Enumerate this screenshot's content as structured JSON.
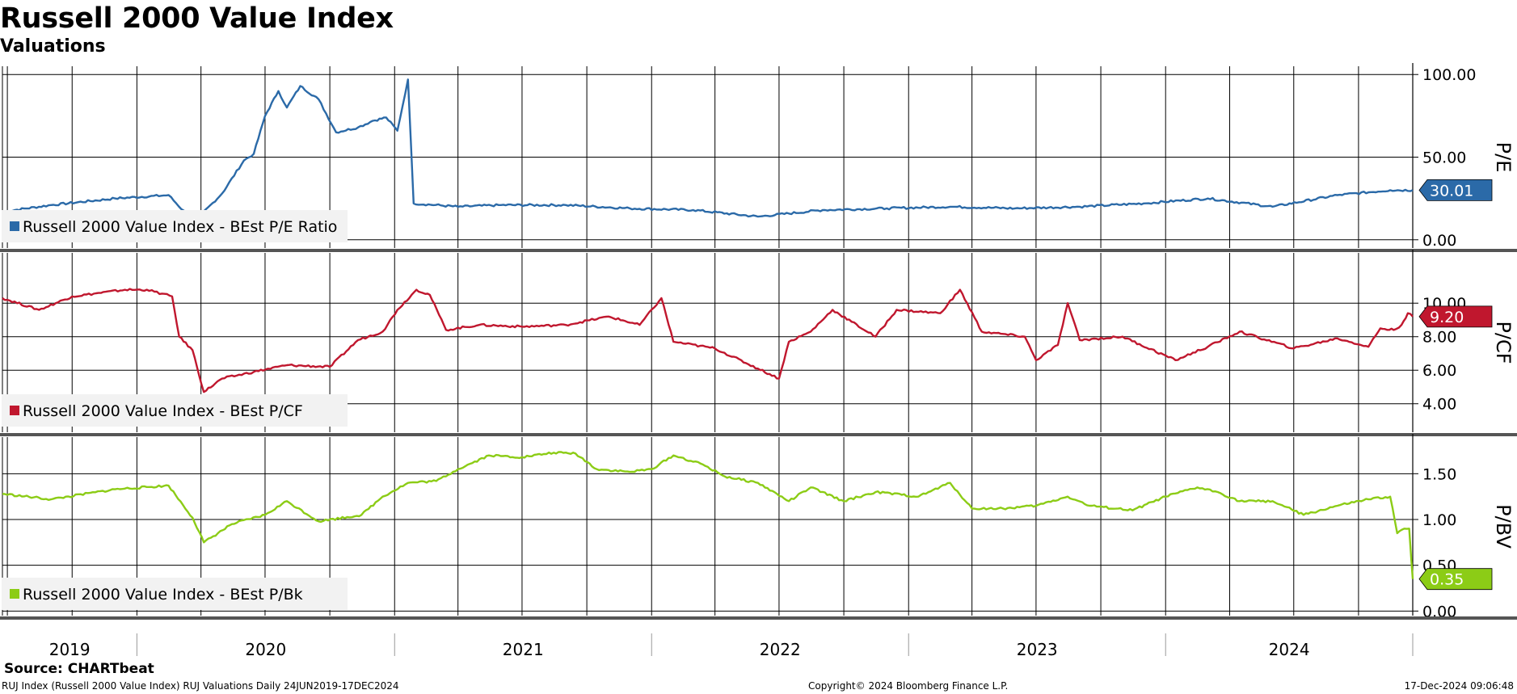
{
  "header": {
    "title": "Russell 2000 Value Index",
    "subtitle": "Valuations"
  },
  "footer": {
    "source": "Source: CHARTbeat",
    "left": "RUJ Index (Russell 2000 Value Index) RUJ Valuations  Daily 24JUN2019-17DEC2024",
    "middle": "Copyright© 2024 Bloomberg Finance L.P.",
    "right": "17-Dec-2024 09:06:48"
  },
  "colors": {
    "pe": "#2b6aa8",
    "pcf": "#c0172e",
    "pbv": "#8ccc16",
    "grid": "#000000"
  },
  "chart_data": {
    "type": "line",
    "x_start": "2019-06-24",
    "x_end": "2024-12-17",
    "x_tick_labels": [
      "2019",
      "2020",
      "2021",
      "2022",
      "2023",
      "2024"
    ],
    "panels": [
      {
        "ylabel": "P/E",
        "ylim": [
          -5,
          105
        ],
        "yticks": [
          0,
          50,
          100
        ],
        "ytick_labels": [
          "0.00",
          "50.00",
          "100.00"
        ],
        "last_value_label": "30.01",
        "series": [
          {
            "name": "Russell 2000 Value Index - BEst P/E Ratio",
            "color": "#2b6aa8",
            "points": [
              [
                "2019-06-24",
                17
              ],
              [
                "2019-09-01",
                21
              ],
              [
                "2019-12-01",
                25
              ],
              [
                "2020-02-15",
                27
              ],
              [
                "2020-03-15",
                14
              ],
              [
                "2020-04-01",
                15
              ],
              [
                "2020-05-01",
                28
              ],
              [
                "2020-06-01",
                48
              ],
              [
                "2020-06-15",
                52
              ],
              [
                "2020-07-01",
                75
              ],
              [
                "2020-07-20",
                90
              ],
              [
                "2020-08-01",
                80
              ],
              [
                "2020-08-20",
                93
              ],
              [
                "2020-09-15",
                85
              ],
              [
                "2020-10-10",
                65
              ],
              [
                "2020-11-10",
                68
              ],
              [
                "2020-12-01",
                72
              ],
              [
                "2020-12-20",
                74
              ],
              [
                "2021-01-05",
                66
              ],
              [
                "2021-01-20",
                97
              ],
              [
                "2021-01-28",
                22
              ],
              [
                "2021-04-01",
                20
              ],
              [
                "2021-06-01",
                21
              ],
              [
                "2021-09-01",
                21
              ],
              [
                "2021-12-01",
                19
              ],
              [
                "2022-03-01",
                18
              ],
              [
                "2022-06-01",
                14
              ],
              [
                "2022-09-01",
                18
              ],
              [
                "2022-12-01",
                19
              ],
              [
                "2023-03-01",
                20
              ],
              [
                "2023-06-01",
                19
              ],
              [
                "2023-09-01",
                20
              ],
              [
                "2023-12-01",
                22
              ],
              [
                "2024-03-01",
                25
              ],
              [
                "2024-06-01",
                20
              ],
              [
                "2024-09-01",
                27
              ],
              [
                "2024-11-15",
                30
              ],
              [
                "2024-12-17",
                30
              ]
            ]
          }
        ]
      },
      {
        "ylabel": "P/CF",
        "ylim": [
          2.3,
          13.0
        ],
        "yticks": [
          4,
          6,
          8,
          10
        ],
        "ytick_labels": [
          "4.00",
          "6.00",
          "8.00",
          "10.00"
        ],
        "last_value_label": "9.20",
        "series": [
          {
            "name": "Russell 2000 Value Index - BEst P/CF",
            "color": "#c0172e",
            "points": [
              [
                "2019-06-24",
                10.3
              ],
              [
                "2019-08-15",
                9.6
              ],
              [
                "2019-10-01",
                10.4
              ],
              [
                "2019-12-15",
                10.8
              ],
              [
                "2020-01-15",
                10.8
              ],
              [
                "2020-02-20",
                10.4
              ],
              [
                "2020-03-01",
                8.0
              ],
              [
                "2020-03-20",
                7.2
              ],
              [
                "2020-04-05",
                4.7
              ],
              [
                "2020-05-01",
                5.5
              ],
              [
                "2020-06-15",
                5.9
              ],
              [
                "2020-08-01",
                6.3
              ],
              [
                "2020-10-01",
                6.2
              ],
              [
                "2020-11-10",
                7.8
              ],
              [
                "2020-12-15",
                8.3
              ],
              [
                "2021-01-05",
                9.6
              ],
              [
                "2021-02-01",
                10.8
              ],
              [
                "2021-02-20",
                10.5
              ],
              [
                "2021-03-15",
                8.4
              ],
              [
                "2021-05-01",
                8.7
              ],
              [
                "2021-07-01",
                8.6
              ],
              [
                "2021-09-01",
                8.7
              ],
              [
                "2021-11-01",
                9.2
              ],
              [
                "2021-12-15",
                8.7
              ],
              [
                "2022-01-15",
                10.3
              ],
              [
                "2022-02-01",
                7.7
              ],
              [
                "2022-04-01",
                7.3
              ],
              [
                "2022-06-01",
                6.1
              ],
              [
                "2022-07-01",
                5.5
              ],
              [
                "2022-07-15",
                7.7
              ],
              [
                "2022-08-15",
                8.3
              ],
              [
                "2022-09-15",
                9.6
              ],
              [
                "2022-11-15",
                8.0
              ],
              [
                "2022-12-15",
                9.6
              ],
              [
                "2023-02-15",
                9.4
              ],
              [
                "2023-03-15",
                10.8
              ],
              [
                "2023-04-15",
                8.3
              ],
              [
                "2023-06-15",
                8.0
              ],
              [
                "2023-07-01",
                6.6
              ],
              [
                "2023-08-01",
                7.5
              ],
              [
                "2023-08-15",
                10.0
              ],
              [
                "2023-09-01",
                7.8
              ],
              [
                "2023-11-01",
                8.0
              ],
              [
                "2024-01-15",
                6.6
              ],
              [
                "2024-03-01",
                7.4
              ],
              [
                "2024-04-15",
                8.3
              ],
              [
                "2024-07-01",
                7.3
              ],
              [
                "2024-09-01",
                7.9
              ],
              [
                "2024-10-15",
                7.4
              ],
              [
                "2024-11-01",
                8.5
              ],
              [
                "2024-11-20",
                8.4
              ],
              [
                "2024-12-01",
                8.7
              ],
              [
                "2024-12-10",
                9.4
              ],
              [
                "2024-12-17",
                9.2
              ]
            ]
          }
        ]
      },
      {
        "ylabel": "P/BV",
        "ylim": [
          -0.05,
          1.9
        ],
        "yticks": [
          0,
          0.5,
          1,
          1.5
        ],
        "ytick_labels": [
          "0.00",
          "0.50",
          "1.00",
          "1.50"
        ],
        "last_value_label": "0.35",
        "series": [
          {
            "name": "Russell 2000 Value Index - BEst P/Bk",
            "color": "#8ccc16",
            "points": [
              [
                "2019-06-24",
                1.28
              ],
              [
                "2019-09-01",
                1.22
              ],
              [
                "2019-12-01",
                1.33
              ],
              [
                "2020-02-15",
                1.37
              ],
              [
                "2020-03-20",
                1.02
              ],
              [
                "2020-04-05",
                0.75
              ],
              [
                "2020-05-15",
                0.95
              ],
              [
                "2020-07-01",
                1.05
              ],
              [
                "2020-08-01",
                1.2
              ],
              [
                "2020-09-15",
                0.98
              ],
              [
                "2020-11-15",
                1.05
              ],
              [
                "2020-12-15",
                1.25
              ],
              [
                "2021-01-20",
                1.4
              ],
              [
                "2021-03-01",
                1.42
              ],
              [
                "2021-04-01",
                1.55
              ],
              [
                "2021-05-15",
                1.7
              ],
              [
                "2021-07-01",
                1.68
              ],
              [
                "2021-08-15",
                1.73
              ],
              [
                "2021-09-15",
                1.72
              ],
              [
                "2021-10-15",
                1.55
              ],
              [
                "2021-12-01",
                1.52
              ],
              [
                "2022-01-01",
                1.55
              ],
              [
                "2022-02-01",
                1.7
              ],
              [
                "2022-03-15",
                1.6
              ],
              [
                "2022-04-15",
                1.47
              ],
              [
                "2022-06-01",
                1.4
              ],
              [
                "2022-07-15",
                1.2
              ],
              [
                "2022-08-15",
                1.35
              ],
              [
                "2022-10-01",
                1.2
              ],
              [
                "2022-11-15",
                1.3
              ],
              [
                "2023-01-15",
                1.25
              ],
              [
                "2023-03-01",
                1.4
              ],
              [
                "2023-04-01",
                1.12
              ],
              [
                "2023-05-15",
                1.12
              ],
              [
                "2023-07-01",
                1.15
              ],
              [
                "2023-08-15",
                1.25
              ],
              [
                "2023-09-15",
                1.15
              ],
              [
                "2023-11-15",
                1.1
              ],
              [
                "2024-01-01",
                1.25
              ],
              [
                "2024-02-15",
                1.35
              ],
              [
                "2024-03-15",
                1.3
              ],
              [
                "2024-04-15",
                1.2
              ],
              [
                "2024-06-01",
                1.2
              ],
              [
                "2024-07-15",
                1.05
              ],
              [
                "2024-09-01",
                1.15
              ],
              [
                "2024-10-15",
                1.22
              ],
              [
                "2024-11-15",
                1.25
              ],
              [
                "2024-11-25",
                0.85
              ],
              [
                "2024-12-05",
                0.9
              ],
              [
                "2024-12-12",
                0.9
              ],
              [
                "2024-12-15",
                0.55
              ],
              [
                "2024-12-17",
                0.35
              ]
            ]
          }
        ]
      }
    ]
  }
}
